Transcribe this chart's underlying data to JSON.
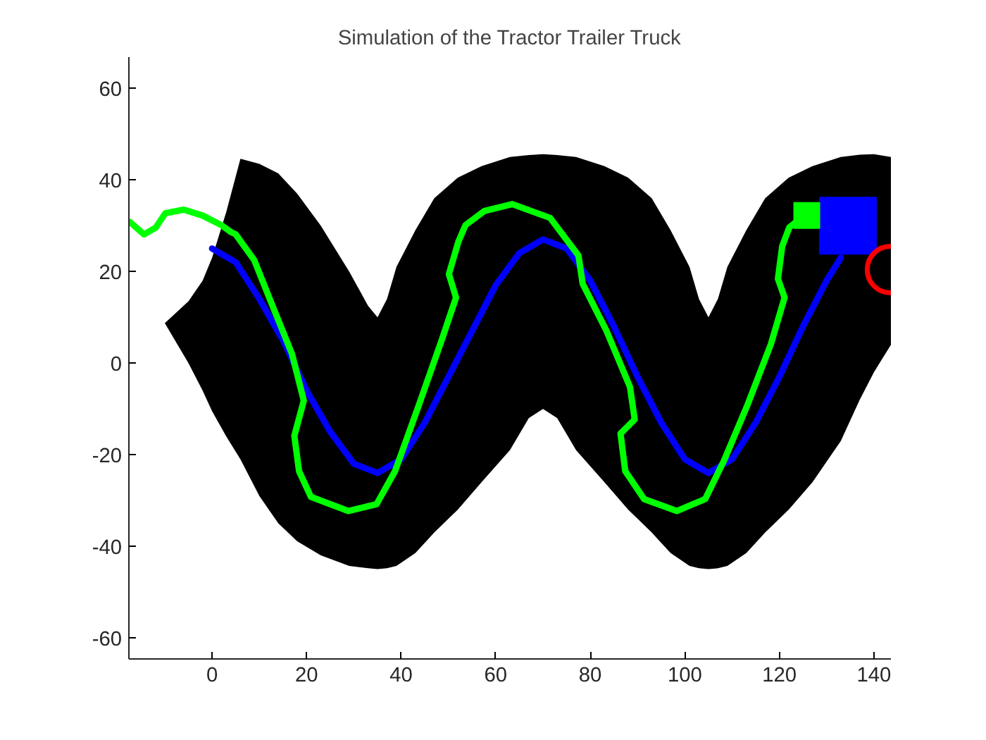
{
  "chart_data": {
    "type": "line",
    "title": "Simulation of the Tractor Trailer Truck",
    "xlim": [
      -17.6,
      143.6
    ],
    "ylim": [
      -64.6,
      66.8
    ],
    "xticks": [
      0,
      20,
      40,
      60,
      80,
      100,
      120,
      140
    ],
    "yticks": [
      -60,
      -40,
      -20,
      0,
      20,
      40,
      60
    ],
    "grid": false,
    "marker": "none",
    "line_style": "solid",
    "series": [
      {
        "color": "#000000",
        "x": [
          -10,
          -5,
          -2,
          0,
          3,
          6,
          10,
          14,
          18,
          23,
          29,
          33,
          35,
          37,
          39,
          43,
          47,
          52,
          57,
          63,
          67,
          70,
          73,
          77,
          83,
          88,
          93,
          97,
          101,
          103,
          105,
          107,
          109,
          113,
          117,
          122,
          127,
          133,
          137,
          140,
          143.6
        ],
        "values": [
          null,
          null,
          null,
          null,
          null,
          null,
          null,
          null,
          null,
          null,
          null,
          null,
          null,
          null,
          null,
          null,
          null,
          null,
          null,
          null,
          null,
          null,
          null,
          null,
          null,
          null,
          null,
          null,
          null,
          null,
          null,
          null,
          null,
          null,
          null,
          null,
          null,
          null,
          null,
          null,
          null
        ],
        "lower": [
          8.7,
          0,
          -6,
          -10.5,
          -16,
          -21,
          -29,
          -35,
          -38.9,
          -42,
          -44.3,
          -44.8,
          -45,
          -44.8,
          -44.3,
          -41.5,
          -37,
          -32,
          -26,
          -19,
          -12,
          -10,
          -12,
          -19,
          -26,
          -32,
          -37,
          -41.5,
          -44.3,
          -44.8,
          -45,
          -44.8,
          -44.3,
          -41.5,
          -37,
          -32,
          -26,
          -17,
          -8,
          -2,
          4
        ],
        "upper": [
          8.7,
          13.5,
          18,
          23,
          33,
          44.6,
          43.5,
          41.4,
          37,
          30,
          20,
          12.5,
          10,
          14,
          21,
          29,
          36,
          40.5,
          43,
          45,
          45.4,
          45.6,
          45.4,
          45,
          43,
          40.5,
          36,
          29,
          21,
          14,
          10,
          14,
          21,
          29,
          36,
          40.5,
          43,
          45,
          45.5,
          45.6,
          45
        ]
      },
      {
        "type": "scatter",
        "color": "#0000ff",
        "marker": "square",
        "x": [
          134.5
        ],
        "values": [
          30
        ]
      },
      {
        "type": "scatter",
        "color": "#00ff00",
        "marker": "square",
        "x": [
          125.8
        ],
        "values": [
          32.2
        ]
      },
      {
        "type": "scatter",
        "color": "#ff0000",
        "marker": "circle",
        "x": [
          143.5
        ],
        "values": [
          20.4
        ]
      },
      {
        "color": "#0000ff",
        "x": [
          0,
          5,
          10,
          15,
          20,
          25,
          30,
          35,
          40,
          45,
          50,
          55,
          60,
          65,
          70,
          75,
          80,
          85,
          90,
          95,
          100,
          105,
          110,
          115,
          120,
          125,
          130,
          133
        ],
        "values": [
          25,
          22,
          14,
          5,
          -6,
          -15,
          -22,
          -24,
          -21,
          -13,
          -3,
          7,
          17,
          24,
          27,
          25,
          18,
          8,
          -3,
          -13,
          -21,
          -24,
          -21,
          -13,
          -3,
          8,
          18,
          23
        ]
      },
      {
        "color": "#00ff00",
        "x": [
          -17.4,
          -14.4,
          -11.9,
          -9.9,
          -6,
          -2,
          2,
          4,
          5,
          8.9,
          12.9,
          16.9,
          19.4,
          17.4,
          18.4,
          20.9,
          28.8,
          34.8,
          38.7,
          43.7,
          48.6,
          51.6,
          50.1,
          52.1,
          53.6,
          57.6,
          63.5,
          71.5,
          77.5,
          78.4,
          83.4,
          88.4,
          89.4,
          86.4,
          87.4,
          91.4,
          98.3,
          104.3,
          108.2,
          113.2,
          118.2,
          121.1,
          119.7,
          120.6,
          122.1,
          124.6
        ],
        "values": [
          30.8,
          28.1,
          29.6,
          32.7,
          33.5,
          32.2,
          30.1,
          28.6,
          28.1,
          22.5,
          12.2,
          2,
          -8.2,
          -15.9,
          -23.6,
          -29.2,
          -32.3,
          -30.8,
          -23.6,
          -9.3,
          5.1,
          14.3,
          19.4,
          26.5,
          30.1,
          33.2,
          34.7,
          31.7,
          23.5,
          17.3,
          7.1,
          -5.2,
          -12.3,
          -15.4,
          -23.6,
          -29.7,
          -32.3,
          -29.7,
          -21.5,
          -9.3,
          4.1,
          14.3,
          18.4,
          25.5,
          29.6,
          31.7
        ]
      }
    ]
  }
}
